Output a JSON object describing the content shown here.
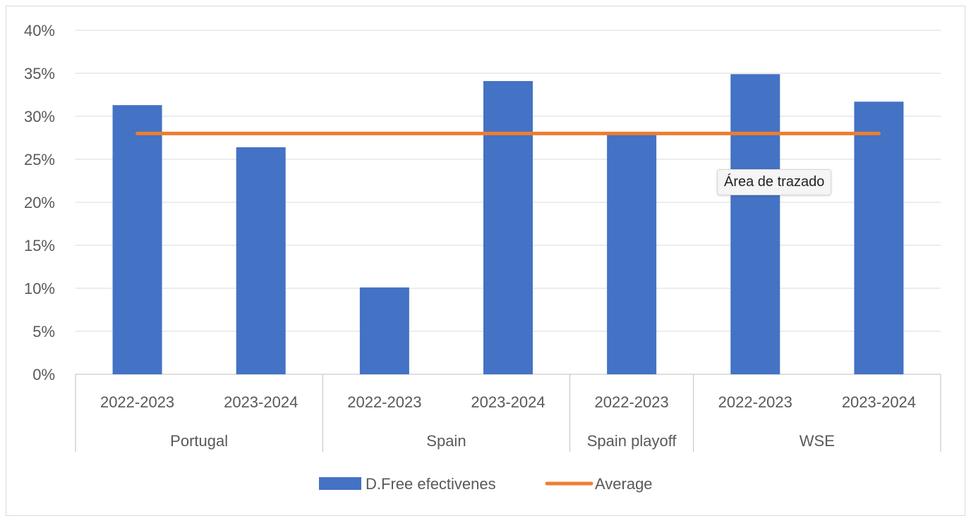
{
  "chart_data": {
    "type": "bar",
    "y_ticks": [
      "0%",
      "5%",
      "10%",
      "15%",
      "20%",
      "25%",
      "30%",
      "35%",
      "40%"
    ],
    "ylim": [
      0,
      0.4
    ],
    "grid": true,
    "legend_position": "bottom",
    "categories": [
      "2022-2023",
      "2023-2024",
      "2022-2023",
      "2023-2024",
      "2022-2023",
      "2022-2023",
      "2023-2024"
    ],
    "groups": [
      {
        "label": "Portugal",
        "count": 2
      },
      {
        "label": "Spain",
        "count": 2
      },
      {
        "label": "Spain playoff",
        "count": 1
      },
      {
        "label": "WSE",
        "count": 2
      }
    ],
    "series": [
      {
        "name": "D.Free efectivenes",
        "type": "bar",
        "color": "#4472c4",
        "values": [
          0.313,
          0.264,
          0.101,
          0.341,
          0.279,
          0.349,
          0.317
        ]
      },
      {
        "name": "Average",
        "type": "line",
        "color": "#ed7d31",
        "values": [
          0.28,
          0.28,
          0.28,
          0.28,
          0.28,
          0.28,
          0.28
        ]
      }
    ]
  },
  "tooltip": {
    "text": "Área de trazado"
  }
}
